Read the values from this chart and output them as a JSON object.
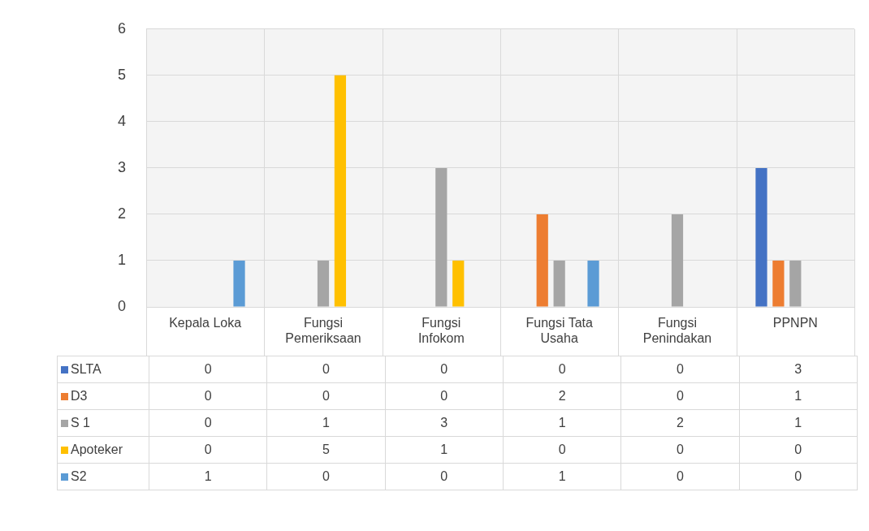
{
  "chart_data": {
    "type": "bar",
    "categories": [
      "Kepala Loka",
      "Fungsi Pemeriksaan",
      "Fungsi Infokom",
      "Fungsi Tata Usaha",
      "Fungsi Penindakan",
      "PPNPN"
    ],
    "series": [
      {
        "name": "SLTA",
        "color": "#4472c4",
        "values": [
          0,
          0,
          0,
          0,
          0,
          3
        ]
      },
      {
        "name": "D3",
        "color": "#ed7d31",
        "values": [
          0,
          0,
          0,
          2,
          0,
          1
        ]
      },
      {
        "name": "S 1",
        "color": "#a5a5a5",
        "values": [
          0,
          1,
          3,
          1,
          2,
          1
        ]
      },
      {
        "name": "Apoteker",
        "color": "#ffc000",
        "values": [
          0,
          5,
          1,
          0,
          0,
          0
        ]
      },
      {
        "name": "S2",
        "color": "#5b9bd5",
        "values": [
          1,
          0,
          0,
          1,
          0,
          0
        ]
      }
    ],
    "ylim": [
      0,
      6
    ],
    "yticks": [
      0,
      1,
      2,
      3,
      4,
      5,
      6
    ],
    "grid": true,
    "legend": "bottom",
    "data_labels": true
  }
}
